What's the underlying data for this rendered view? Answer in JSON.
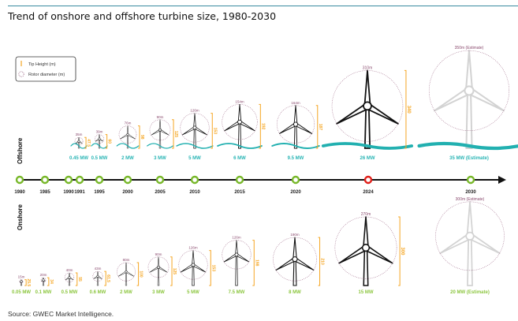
{
  "title": "Trend of onshore and offshore turbine size, 1980-2030",
  "source": "Source: GWEC Market Intelligence.",
  "legend": {
    "tip_height": "Tip Height (m)",
    "rotor_diameter": "Rotor diameter (m)"
  },
  "colors": {
    "tip_height": "#f5a623",
    "rotor": "#8a4a6e",
    "offshore_label": "#2ab5b5",
    "onshore_label": "#8cc63f",
    "wave": "#22b0b0",
    "estimate_turbine": "#d3d3d3",
    "timeline_dot": "#78b82a",
    "timeline_dot_current": "#e0201a"
  },
  "sections": {
    "offshore": "Offshore",
    "onshore": "Onshore"
  },
  "timeline": {
    "years": [
      "1980",
      "1985",
      "1990",
      "1991",
      "1995",
      "2000",
      "2005",
      "2010",
      "2015",
      "2020",
      "2024",
      "2030"
    ],
    "current_year": "2024"
  },
  "offshore": [
    {
      "year": "1990",
      "capacity": "0.45 MW",
      "rotor": "35m",
      "rotor_m": 35,
      "tip": "47.5",
      "tip_m": 47.5
    },
    {
      "year": "1995",
      "capacity": "0.5 MW",
      "rotor": "39m",
      "rotor_m": 39,
      "tip": "60",
      "tip_m": 60
    },
    {
      "year": "2000",
      "capacity": "2 MW",
      "rotor": "76m",
      "rotor_m": 76,
      "tip": "98",
      "tip_m": 98
    },
    {
      "year": "2005",
      "capacity": "3 MW",
      "rotor": "90m",
      "rotor_m": 90,
      "tip": "125",
      "tip_m": 125
    },
    {
      "year": "2010",
      "capacity": "5 MW",
      "rotor": "126m",
      "rotor_m": 126,
      "tip": "153",
      "tip_m": 153
    },
    {
      "year": "2015",
      "capacity": "6 MW",
      "rotor": "154m",
      "rotor_m": 154,
      "tip": "192",
      "tip_m": 192
    },
    {
      "year": "2020",
      "capacity": "9.5 MW",
      "rotor": "164m",
      "rotor_m": 164,
      "tip": "187",
      "tip_m": 187
    },
    {
      "year": "2024",
      "capacity": "26 MW",
      "rotor": "310m",
      "rotor_m": 310,
      "tip": "340",
      "tip_m": 340
    },
    {
      "year": "2030",
      "capacity": "35 MW (Estimate)",
      "rotor": "350m (Estimate)",
      "rotor_m": 350,
      "estimate": true
    }
  ],
  "onshore": [
    {
      "capacity": "0.05 MW",
      "rotor": "15m",
      "rotor_m": 15,
      "tip": "25.5",
      "tip_m": 25.5
    },
    {
      "capacity": "0.1 MW",
      "rotor": "20m",
      "rotor_m": 20,
      "tip": "34",
      "tip_m": 34
    },
    {
      "capacity": "0.5 MW",
      "rotor": "40m",
      "rotor_m": 40,
      "tip": "55",
      "tip_m": 55
    },
    {
      "capacity": "0.6 MW",
      "rotor": "43m",
      "rotor_m": 43,
      "tip": "61.5",
      "tip_m": 61.5
    },
    {
      "capacity": "2 MW",
      "rotor": "80m",
      "rotor_m": 80,
      "tip": "100",
      "tip_m": 100
    },
    {
      "capacity": "3 MW",
      "rotor": "90m",
      "rotor_m": 90,
      "tip": "125",
      "tip_m": 125
    },
    {
      "capacity": "5 MW",
      "rotor": "126m",
      "rotor_m": 126,
      "tip": "153",
      "tip_m": 153
    },
    {
      "capacity": "7.5 MW",
      "rotor": "126m",
      "rotor_m": 126,
      "tip": "198",
      "tip_m": 198
    },
    {
      "capacity": "8 MW",
      "rotor": "190m",
      "rotor_m": 190,
      "tip": "210",
      "tip_m": 210
    },
    {
      "capacity": "15 MW",
      "rotor": "270m",
      "rotor_m": 270,
      "tip": "300",
      "tip_m": 300
    },
    {
      "capacity": "20 MW (Estimate)",
      "rotor": "300m (Estimate)",
      "rotor_m": 300,
      "estimate": true
    }
  ]
}
